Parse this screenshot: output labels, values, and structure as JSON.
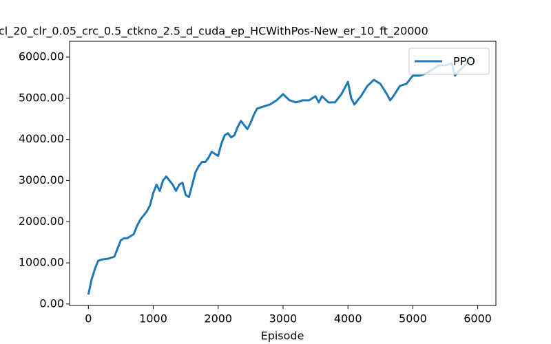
{
  "chart_data": {
    "type": "line",
    "title": "cl_20_clr_0.05_crc_0.5_ctkno_2.5_d_cuda_ep_HCWithPos-New_er_10_ft_20000",
    "x_label": "Episode",
    "legend": "upper right",
    "xlim": [
      -290,
      6280
    ],
    "ylim": [
      -35,
      6385
    ],
    "xticks": [
      0,
      1000,
      2000,
      3000,
      4000,
      5000,
      6000
    ],
    "yticks": [
      {
        "value": 0,
        "label": "0.00"
      },
      {
        "value": 1000,
        "label": "1000.00"
      },
      {
        "value": 2000,
        "label": "2000.00"
      },
      {
        "value": 3000,
        "label": "3000.00"
      },
      {
        "value": 4000,
        "label": "4000.00"
      },
      {
        "value": 5000,
        "label": "5000.00"
      },
      {
        "value": 6000,
        "label": "6000.00"
      }
    ],
    "x": [
      0,
      50,
      100,
      150,
      200,
      300,
      400,
      450,
      500,
      550,
      600,
      700,
      750,
      800,
      900,
      950,
      1000,
      1050,
      1100,
      1150,
      1200,
      1250,
      1300,
      1350,
      1400,
      1450,
      1500,
      1550,
      1600,
      1650,
      1700,
      1750,
      1800,
      1850,
      1900,
      1950,
      2000,
      2050,
      2100,
      2150,
      2200,
      2250,
      2300,
      2350,
      2400,
      2450,
      2500,
      2550,
      2600,
      2700,
      2800,
      2900,
      3000,
      3100,
      3200,
      3300,
      3400,
      3500,
      3550,
      3600,
      3700,
      3800,
      3900,
      4000,
      4050,
      4100,
      4200,
      4300,
      4400,
      4500,
      4600,
      4650,
      4700,
      4800,
      4900,
      5000,
      5100,
      5200,
      5300,
      5400,
      5500,
      5600,
      5650,
      5700,
      5800,
      5900
    ],
    "series": [
      {
        "name": "PPO",
        "color": "#1f77b4",
        "values": [
          230,
          600,
          850,
          1050,
          1080,
          1100,
          1150,
          1350,
          1550,
          1600,
          1600,
          1700,
          1900,
          2050,
          2250,
          2400,
          2700,
          2900,
          2750,
          3000,
          3100,
          3000,
          2900,
          2750,
          2900,
          2950,
          2650,
          2600,
          2900,
          3200,
          3350,
          3450,
          3450,
          3550,
          3700,
          3650,
          3600,
          3900,
          4100,
          4150,
          4050,
          4100,
          4300,
          4450,
          4350,
          4250,
          4400,
          4600,
          4750,
          4800,
          4850,
          4950,
          5100,
          4950,
          4900,
          4950,
          4950,
          5050,
          4900,
          5050,
          4900,
          4900,
          5100,
          5400,
          5000,
          4850,
          5050,
          5300,
          5450,
          5350,
          5100,
          4950,
          5050,
          5300,
          5350,
          5550,
          5550,
          5600,
          5700,
          5800,
          5800,
          5850,
          5550,
          5650,
          5800,
          6000
        ]
      }
    ]
  }
}
